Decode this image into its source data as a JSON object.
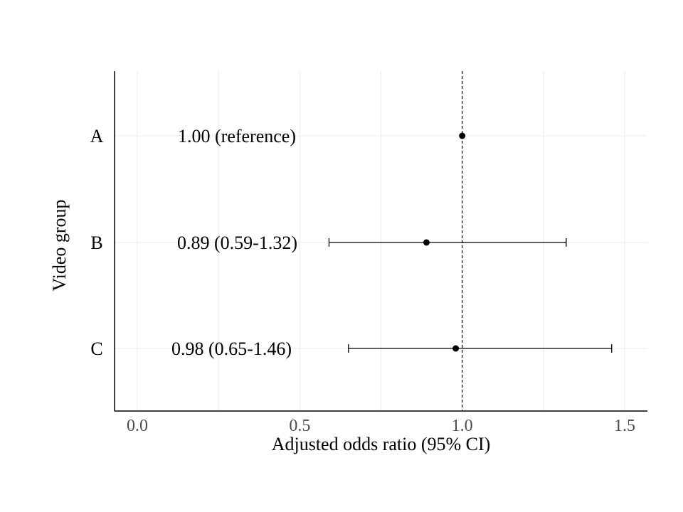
{
  "chart_data": {
    "type": "forest",
    "xlabel": "Adjusted odds ratio (95% CI)",
    "ylabel": "Video group",
    "xlim": [
      -0.07,
      1.57
    ],
    "x_ticks": [
      "0.0",
      "0.5",
      "1.0",
      "1.5"
    ],
    "x_tick_values": [
      0.0,
      0.5,
      1.0,
      1.5
    ],
    "reference_line": 1.0,
    "grid": true,
    "rows": [
      {
        "group": "A",
        "estimate": 1.0,
        "lower": null,
        "upper": null,
        "label": "1.00 (reference)"
      },
      {
        "group": "B",
        "estimate": 0.89,
        "lower": 0.59,
        "upper": 1.32,
        "label": "0.89 (0.59-1.32)"
      },
      {
        "group": "C",
        "estimate": 0.98,
        "lower": 0.65,
        "upper": 1.46,
        "label": "0.98 (0.65-1.46)"
      }
    ]
  }
}
